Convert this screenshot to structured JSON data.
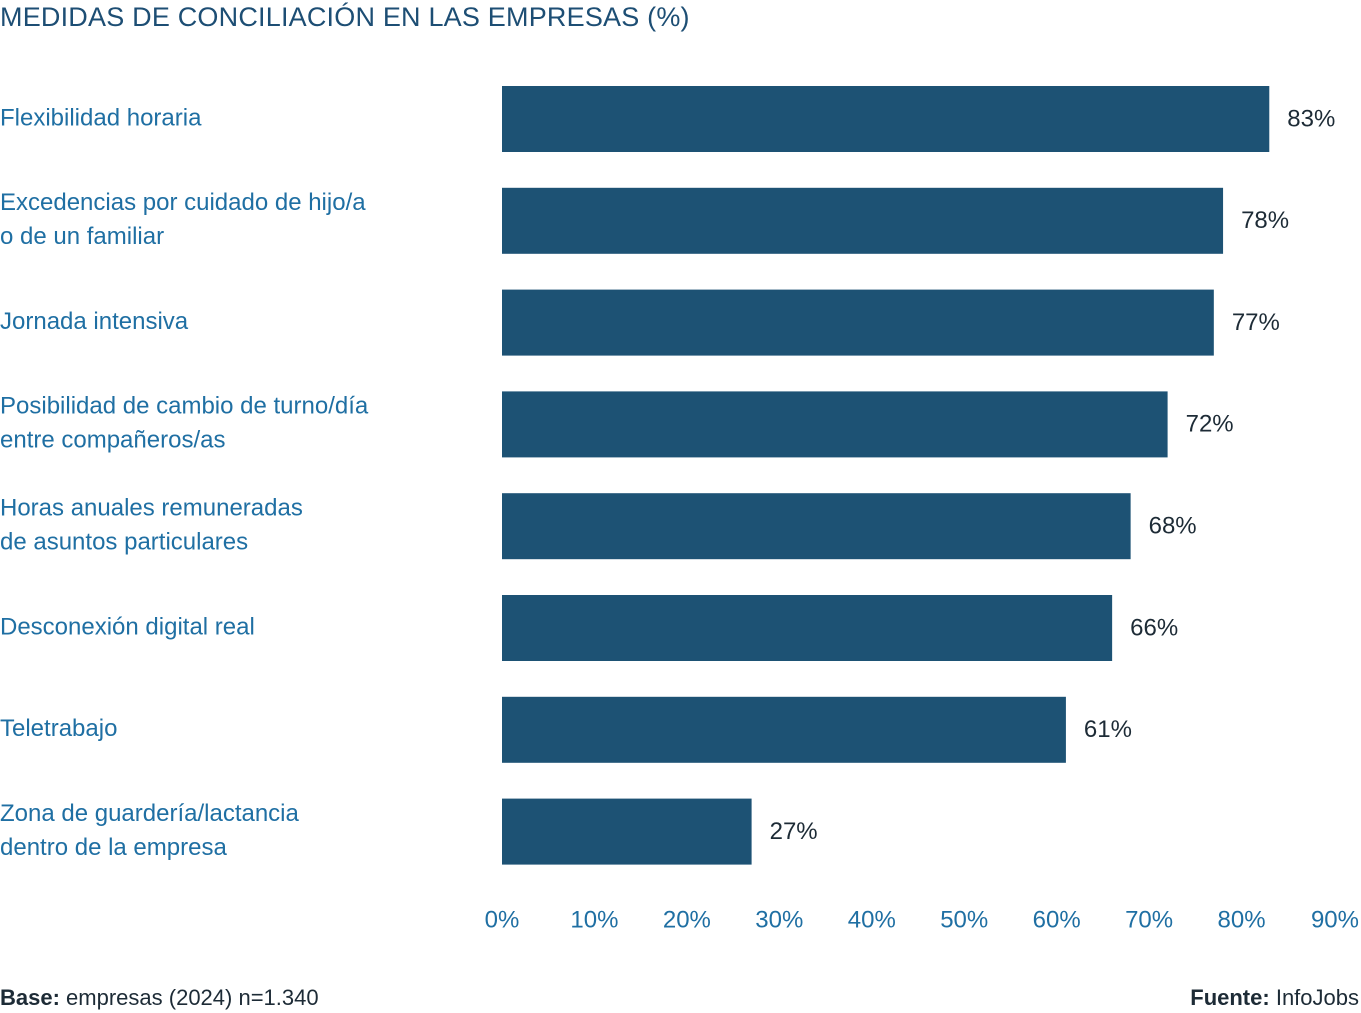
{
  "chart_data": {
    "type": "bar",
    "orientation": "horizontal",
    "title": "MEDIDAS DE CONCILIACIÓN EN LAS EMPRESAS (%)",
    "categories": [
      [
        "Flexibilidad horaria"
      ],
      [
        "Excedencias por cuidado de hijo/a",
        "o de un familiar"
      ],
      [
        "Jornada intensiva"
      ],
      [
        "Posibilidad de cambio de turno/día",
        "entre compañeros/as"
      ],
      [
        "Horas anuales remuneradas",
        "de asuntos particulares"
      ],
      [
        "Desconexión digital real"
      ],
      [
        "Teletrabajo"
      ],
      [
        "Zona de guardería/lactancia",
        "dentro de la empresa"
      ]
    ],
    "values": [
      83,
      78,
      77,
      72,
      68,
      66,
      61,
      27
    ],
    "value_labels": [
      "83%",
      "78%",
      "77%",
      "72%",
      "68%",
      "66%",
      "61%",
      "27%"
    ],
    "xlim": [
      0,
      90
    ],
    "x_ticks": [
      0,
      10,
      20,
      30,
      40,
      50,
      60,
      70,
      80,
      90
    ],
    "x_tick_labels": [
      "0%",
      "10%",
      "20%",
      "30%",
      "40%",
      "50%",
      "60%",
      "70%",
      "80%",
      "90%"
    ],
    "grid": false,
    "legend": "none",
    "colors": {
      "bar": "#1d5274",
      "category_text": "#1f6fa3",
      "tick_text": "#1f6fa3",
      "value_text": "#1d2b36",
      "title": "#1d4e74"
    }
  },
  "footer": {
    "base_label": "Base:",
    "base_text": "empresas (2024) n=1.340",
    "source_label": "Fuente:",
    "source_text": "InfoJobs"
  }
}
